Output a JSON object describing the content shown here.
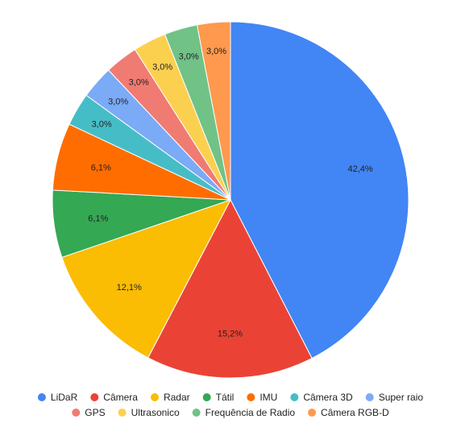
{
  "chart_data": {
    "type": "pie",
    "title": "",
    "legend_position": "bottom",
    "slices": [
      {
        "label": "LiDaR",
        "value": 42.4,
        "display": "42,4%",
        "color": "#4285f4"
      },
      {
        "label": "Câmera",
        "value": 15.2,
        "display": "15,2%",
        "color": "#ea4335"
      },
      {
        "label": "Radar",
        "value": 12.1,
        "display": "12,1%",
        "color": "#fbbc04"
      },
      {
        "label": "Tátil",
        "value": 6.1,
        "display": "6,1%",
        "color": "#34a853"
      },
      {
        "label": "IMU",
        "value": 6.1,
        "display": "6,1%",
        "color": "#ff6d01"
      },
      {
        "label": "Câmera 3D",
        "value": 3.0,
        "display": "3,0%",
        "color": "#46bdc6"
      },
      {
        "label": "Super raio",
        "value": 3.0,
        "display": "3,0%",
        "color": "#7baaf7"
      },
      {
        "label": "GPS",
        "value": 3.0,
        "display": "3,0%",
        "color": "#f07b72"
      },
      {
        "label": "Ultrasonico",
        "value": 3.0,
        "display": "3,0%",
        "color": "#fcd04f"
      },
      {
        "label": "Frequência de Radio",
        "value": 3.0,
        "display": "3,0%",
        "color": "#71c287"
      },
      {
        "label": "Câmera RGB-D",
        "value": 3.0,
        "display": "3,0%",
        "color": "#ff994d"
      }
    ]
  }
}
